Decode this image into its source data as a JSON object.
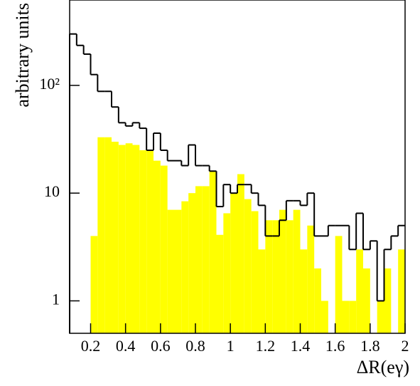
{
  "chart_data": {
    "type": "histogram",
    "y_label": "arbitrary units",
    "x_label": "ΔR(eγ)",
    "bins": [
      0.08,
      0.12,
      0.16,
      0.2,
      0.24,
      0.28,
      0.32,
      0.36,
      0.4,
      0.44,
      0.48,
      0.52,
      0.56,
      0.6,
      0.64,
      0.68,
      0.72,
      0.76,
      0.8,
      0.84,
      0.88,
      0.92,
      0.96,
      1,
      1.04,
      1.08,
      1.12,
      1.16,
      1.2,
      1.24,
      1.28,
      1.32,
      1.36,
      1.4,
      1.44,
      1.48,
      1.52,
      1.56,
      1.6,
      1.64,
      1.68,
      1.72,
      1.76,
      1.8,
      1.84,
      1.88,
      1.92,
      1.96,
      2
    ],
    "series": [
      {
        "color": "#ffff00",
        "style": "filled",
        "values": [
          0,
          0,
          0,
          4,
          33,
          33,
          30,
          28,
          29,
          28,
          25,
          25,
          20,
          18,
          7,
          7,
          8.4,
          10,
          11.6,
          11.6,
          16,
          4.1,
          6.5,
          10,
          15,
          8.8,
          6.8,
          3,
          5.6,
          5.6,
          7,
          5.6,
          7,
          3,
          5,
          2,
          1,
          0,
          4,
          1,
          1,
          3,
          2,
          0,
          1,
          2,
          0,
          3
        ]
      },
      {
        "color": "#000000",
        "style": "outline",
        "values": [
          300,
          235,
          195,
          126,
          88,
          88,
          63,
          45,
          42,
          45,
          40,
          25,
          36,
          25,
          20,
          20,
          18,
          28,
          18,
          18,
          16,
          7.5,
          12,
          10,
          12,
          12,
          10,
          7.7,
          4,
          4,
          5.6,
          8.5,
          8.5,
          7.7,
          10,
          4,
          4,
          5,
          5,
          5,
          3,
          6.5,
          3,
          3.6,
          1,
          3,
          4,
          5
        ]
      }
    ],
    "xlim": [
      0.08,
      2
    ],
    "ylim": [
      0.5,
      620
    ],
    "log_y": true,
    "xticks": [
      0.2,
      0.4,
      0.6,
      0.8,
      1,
      1.2,
      1.4,
      1.6,
      1.8,
      2
    ],
    "yticks": [
      1,
      10,
      {
        "value": 100,
        "label": "10²"
      }
    ]
  }
}
